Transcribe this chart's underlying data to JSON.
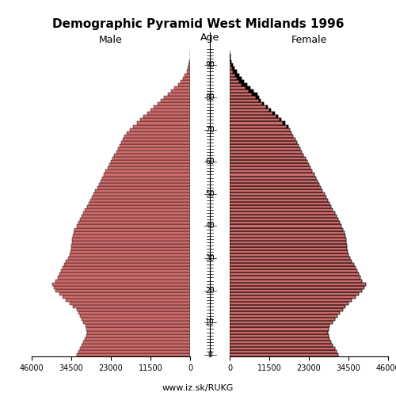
{
  "title": "Demographic Pyramid West Midlands 1996",
  "label_male": "Male",
  "label_female": "Female",
  "age_label": "Age",
  "footer": "www.iz.sk/RUKG",
  "bar_color": "#cd6b6b",
  "bar_edge_color": "#000000",
  "xlim": 46000,
  "male": [
    33000,
    32500,
    32000,
    31500,
    31000,
    30500,
    30200,
    30000,
    30100,
    30300,
    31000,
    31500,
    32000,
    32500,
    33000,
    34000,
    35000,
    36000,
    37000,
    38000,
    39000,
    39500,
    40000,
    39000,
    38500,
    38000,
    37500,
    37000,
    36500,
    36000,
    35500,
    35000,
    34800,
    34600,
    34500,
    34300,
    34200,
    34000,
    33800,
    33500,
    33000,
    32500,
    32000,
    31500,
    31000,
    30500,
    30000,
    29500,
    29000,
    28500,
    28000,
    27500,
    27000,
    26500,
    26000,
    25500,
    25000,
    24500,
    24000,
    23500,
    23000,
    22500,
    22000,
    21500,
    21000,
    20500,
    20000,
    19500,
    19000,
    18500,
    17500,
    16500,
    15500,
    14500,
    13500,
    12500,
    11500,
    10500,
    9500,
    8500,
    7500,
    6500,
    5500,
    4500,
    3500,
    2800,
    2100,
    1500,
    1000,
    600,
    350,
    180,
    80,
    30,
    10
  ],
  "female": [
    31500,
    31000,
    30500,
    30000,
    29500,
    29000,
    28800,
    28600,
    28800,
    29000,
    29800,
    30500,
    31200,
    32000,
    32800,
    33500,
    34500,
    35500,
    36500,
    37500,
    38500,
    39000,
    39500,
    38500,
    38000,
    37500,
    37000,
    36500,
    36000,
    35500,
    35000,
    34500,
    34300,
    34100,
    34000,
    33800,
    33700,
    33500,
    33300,
    33000,
    32500,
    32000,
    31500,
    31000,
    30500,
    30000,
    29500,
    29000,
    28500,
    28000,
    27500,
    27000,
    26500,
    26000,
    25500,
    25000,
    24500,
    24000,
    23500,
    23000,
    22500,
    22000,
    21500,
    21000,
    20500,
    20000,
    19500,
    19000,
    18500,
    18000,
    17500,
    17000,
    16000,
    15000,
    14000,
    13000,
    12000,
    11000,
    10000,
    9000,
    8500,
    8000,
    7000,
    6000,
    5000,
    4200,
    3400,
    2700,
    2000,
    1400,
    900,
    550,
    290,
    130,
    50
  ]
}
